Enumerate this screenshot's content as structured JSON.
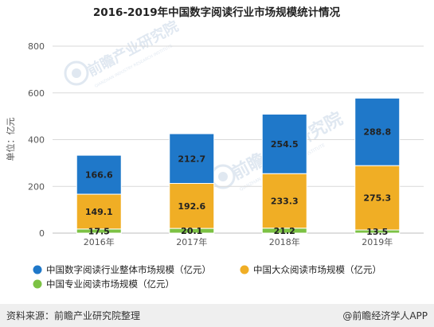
{
  "colors": {
    "total": "#1f78c9",
    "mass": "#f0ae25",
    "professional": "#7cc244",
    "axis_text": "#555555",
    "grid": "#d9d9d9",
    "watermark": "#c8d6e6"
  },
  "watermark": {
    "brand": "前瞻产业研究院",
    "sub": "QIANZHAN INDUSTRY RESEARCH INSTITUTE"
  },
  "footer": {
    "source": "资料来源：前瞻产业研究院整理",
    "brand": "@前瞻经济学人APP"
  },
  "chart_data": {
    "type": "bar",
    "stacked": true,
    "title": "2016-2019年中国数字阅读行业市场规模统计情况",
    "ylabel": "单位：亿元",
    "xlabel": "",
    "ylim": [
      0,
      800
    ],
    "yticks": [
      0,
      200,
      400,
      600,
      800
    ],
    "grid": true,
    "legend_position": "bottom",
    "categories": [
      "2016年",
      "2017年",
      "2018年",
      "2019年"
    ],
    "series": [
      {
        "name": "中国专业阅读市场规模（亿元）",
        "color_key": "professional",
        "values": [
          17.5,
          20.1,
          21.2,
          13.5
        ]
      },
      {
        "name": "中国大众阅读市场规模（亿元）",
        "color_key": "mass",
        "values": [
          149.1,
          192.6,
          233.3,
          275.3
        ]
      },
      {
        "name": "中国数字阅读行业整体市场规模（亿元）",
        "color_key": "total",
        "values": [
          166.6,
          212.7,
          254.5,
          288.8
        ]
      }
    ],
    "legend_order": [
      2,
      1,
      0
    ]
  }
}
